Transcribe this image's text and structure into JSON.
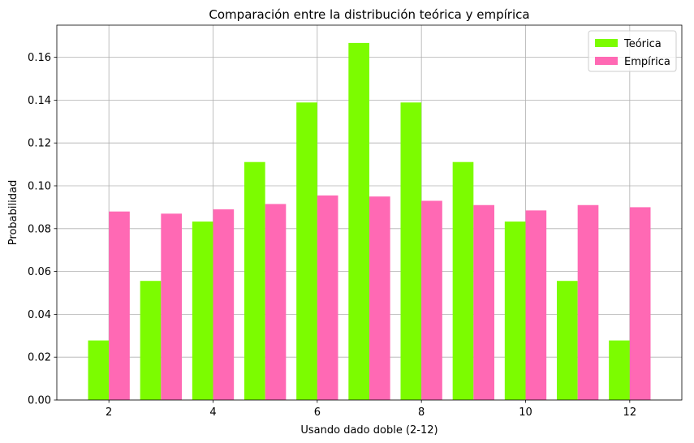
{
  "chart_data": {
    "type": "bar",
    "title": "Comparación entre la distribución teórica y empírica",
    "xlabel": "Usando dado doble (2-12)",
    "ylabel": "Probabilidad",
    "x": [
      2,
      3,
      4,
      5,
      6,
      7,
      8,
      9,
      10,
      11,
      12
    ],
    "xticks": [
      "2",
      "4",
      "6",
      "8",
      "10",
      "12"
    ],
    "xlim": [
      1,
      13
    ],
    "ylim": [
      0,
      0.175
    ],
    "yticks": [
      "0.00",
      "0.02",
      "0.04",
      "0.06",
      "0.08",
      "0.10",
      "0.12",
      "0.14",
      "0.16"
    ],
    "grid": true,
    "legend_position": "top-right",
    "series": [
      {
        "name": "Teórica",
        "color": "#7cfc00",
        "values": [
          0.0278,
          0.0556,
          0.0833,
          0.1111,
          0.1389,
          0.1667,
          0.1389,
          0.1111,
          0.0833,
          0.0556,
          0.0278
        ]
      },
      {
        "name": "Empírica",
        "color": "#ff69b4",
        "values": [
          0.088,
          0.087,
          0.089,
          0.0915,
          0.0955,
          0.095,
          0.093,
          0.091,
          0.0885,
          0.091,
          0.09
        ]
      }
    ]
  }
}
